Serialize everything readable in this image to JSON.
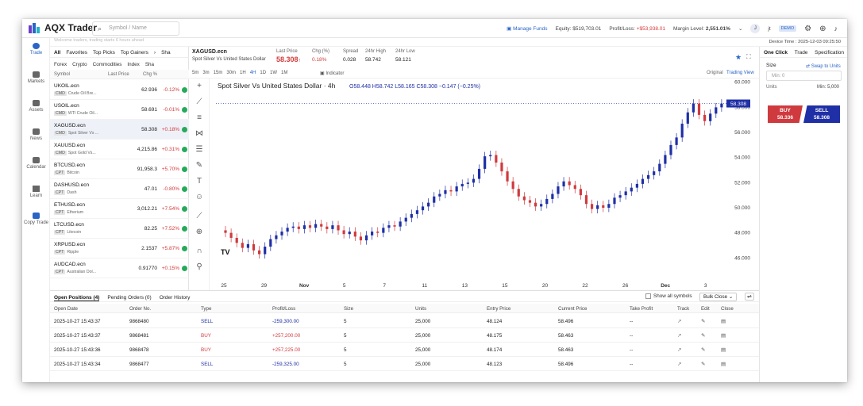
{
  "app": {
    "name": "AQX Trader"
  },
  "search": {
    "placeholder": "Symbol / Name"
  },
  "header": {
    "manage_funds": "Manage Funds",
    "equity_label": "Equity:",
    "equity": "$519,703.01",
    "pl_label": "Profit/Loss:",
    "pl": "+$53,938.01",
    "margin_label": "Margin Level:",
    "margin": "2,551.01%",
    "user_initial": "J",
    "user_name": "jt",
    "account_badge": "DEMO"
  },
  "subbar": {
    "text": "Welcome traders, trading starts 6 hours ahead"
  },
  "device_time": "Device Time : 2025-12-03 09:25:50",
  "nav": [
    {
      "label": "Trade",
      "icon": "trade-icon"
    },
    {
      "label": "Markets",
      "icon": "markets-icon"
    },
    {
      "label": "Assets",
      "icon": "assets-icon"
    },
    {
      "label": "News",
      "icon": "news-icon"
    },
    {
      "label": "Calendar",
      "icon": "calendar-icon"
    },
    {
      "label": "Learn",
      "icon": "learn-icon"
    },
    {
      "label": "Copy Trade",
      "icon": "copy-trade-icon"
    }
  ],
  "watchlist": {
    "tabs": [
      "All",
      "Favorites",
      "Top Picks",
      "Top Gainers",
      "Sha"
    ],
    "subtabs": [
      "Forex",
      "Crypto",
      "Commodities",
      "Index",
      "Sha"
    ],
    "headers": {
      "symbol": "Symbol",
      "last": "Last Price",
      "chg": "Chg %"
    },
    "rows": [
      {
        "symbol": "UKOIL.ecn",
        "tag": "CMD",
        "name": "Crude Oil Bre...",
        "price": "62.936",
        "chg": "-0.12%",
        "color": "#d23a3a"
      },
      {
        "symbol": "USOIL.ecn",
        "tag": "CMD",
        "name": "WTI Crude Oil...",
        "price": "58.691",
        "chg": "-0.01%",
        "color": "#d23a3a"
      },
      {
        "symbol": "XAGUSD.ecn",
        "tag": "CMD",
        "name": "Spot Silver Vs ...",
        "price": "58.308",
        "chg": "+0.18%",
        "color": "#d23a3a"
      },
      {
        "symbol": "XAUUSD.ecn",
        "tag": "CMD",
        "name": "Spot Gold Vs...",
        "price": "4,215.86",
        "chg": "+0.31%",
        "color": "#d23a3a"
      },
      {
        "symbol": "BTCUSD.ecn",
        "tag": "CPT",
        "name": "Bitcoin",
        "price": "91,958.3",
        "chg": "+5.70%",
        "color": "#d23a3a"
      },
      {
        "symbol": "DASHUSD.ecn",
        "tag": "CPT",
        "name": "Dash",
        "price": "47.01",
        "chg": "-0.80%",
        "color": "#d23a3a"
      },
      {
        "symbol": "ETHUSD.ecn",
        "tag": "CPT",
        "name": "Etherium",
        "price": "3,012.21",
        "chg": "+7.54%",
        "color": "#d23a3a"
      },
      {
        "symbol": "LTCUSD.ecn",
        "tag": "CPT",
        "name": "Litecoin",
        "price": "82.25",
        "chg": "+7.52%",
        "color": "#d23a3a"
      },
      {
        "symbol": "XRPUSD.ecn",
        "tag": "CPT",
        "name": "Ripple",
        "price": "2.1537",
        "chg": "+5.87%",
        "color": "#d23a3a"
      },
      {
        "symbol": "AUDCAD.ecn",
        "tag": "CPT",
        "name": "Australian Dol...",
        "price": "0.91770",
        "chg": "+0.15%",
        "color": "#d23a3a"
      }
    ]
  },
  "instrument": {
    "symbol": "XAGUSD.ecn",
    "name": "Spot Silver Vs United States Dollar",
    "last_label": "Last Price",
    "last": "58.308",
    "arrow": "↑",
    "chg_label": "Chg (%)",
    "chg": "0.18%",
    "spread_label": "Spread",
    "spread": "0.028",
    "high_label": "24hr High",
    "high": "58.742",
    "low_label": "24hr Low",
    "low": "58.121"
  },
  "timeframes": [
    "5m",
    "3m",
    "15m",
    "30m",
    "1H",
    "4H",
    "1D",
    "1W",
    "1M"
  ],
  "indicator_label": "Indicator",
  "view": {
    "original": "Original",
    "tv": "Trading View"
  },
  "chart_data": {
    "type": "candlestick",
    "title": "Spot Silver Vs United States Dollar · 4h",
    "ohlc_text": "O58.448 H58.742 L58.165 C58.308 −0.147 (−0.25%)",
    "ylim": [
      44.5,
      60.3
    ],
    "yticks": [
      "60.000",
      "58.000",
      "56.000",
      "54.000",
      "52.000",
      "50.000",
      "48.000",
      "46.000"
    ],
    "ytick_values": [
      60,
      58,
      56,
      54,
      52,
      50,
      48,
      46
    ],
    "xticks": [
      "25",
      "29",
      "Nov",
      "5",
      "7",
      "11",
      "13",
      "15",
      "20",
      "22",
      "26",
      "Dec",
      "3"
    ],
    "last_price_label": "58.308",
    "last_price": 58.308,
    "close": [
      48,
      47.6,
      47.2,
      46.8,
      47.1,
      46.6,
      46.3,
      46.9,
      47.5,
      47.8,
      48.1,
      48.4,
      48.5,
      48.3,
      48.6,
      48.4,
      48.7,
      48.5,
      48.3,
      48.6,
      48.2,
      47.9,
      48.1,
      47.7,
      47.4,
      47.8,
      48.1,
      48.0,
      48.4,
      48.6,
      48.5,
      48.9,
      49.2,
      49.5,
      49.8,
      50.1,
      50.4,
      50.9,
      51.1,
      51.4,
      51.3,
      51.7,
      51.9,
      52.0,
      52.3,
      53.1,
      54.1,
      54.2,
      53.6,
      52.9,
      52.1,
      51.5,
      50.9,
      50.6,
      50.4,
      50.1,
      50.3,
      50.7,
      51.1,
      51.7,
      52.1,
      51.8,
      51.5,
      51.0,
      50.3,
      49.9,
      50.2,
      50.0,
      50.3,
      50.8,
      51.0,
      51.3,
      51.6,
      51.9,
      52.3,
      52.6,
      52.9,
      53.5,
      54.2,
      55.0,
      55.6,
      56.7,
      57.6,
      58.3,
      57.4,
      56.9,
      57.5,
      58.0,
      58.3
    ]
  },
  "right_panel": {
    "tabs": [
      "One Click",
      "Trade",
      "Specification"
    ],
    "size_label": "Size",
    "swap": "Swap to Units",
    "size_value": "Min: 0",
    "units_label": "Units",
    "units_min": "Min: 5,000",
    "buy_label": "BUY",
    "buy_price": "58.336",
    "sell_label": "SELL",
    "sell_price": "58.308"
  },
  "positions": {
    "tabs": [
      "Open Positions (4)",
      "Pending Orders (0)",
      "Order History"
    ],
    "show_all": "Show all symbols",
    "bulk_close": "Bulk Close",
    "headers": [
      "Open Date",
      "Order No.",
      "Type",
      "Profit/Loss",
      "Size",
      "Units",
      "Entry Price",
      "Current Price",
      "Take Profit",
      "Track",
      "Edit",
      "Close"
    ],
    "rows": [
      {
        "date": "2025-10-27 15:43:37",
        "order": "9868480",
        "type": "SELL",
        "pl": "-259,300.00",
        "size": "5",
        "units": "25,000",
        "entry": "48.124",
        "current": "58.496",
        "tp": "--"
      },
      {
        "date": "2025-10-27 15:43:37",
        "order": "9868481",
        "type": "BUY",
        "pl": "+257,200.00",
        "size": "5",
        "units": "25,000",
        "entry": "48.175",
        "current": "58.463",
        "tp": "--"
      },
      {
        "date": "2025-10-27 15:43:36",
        "order": "9868478",
        "type": "BUY",
        "pl": "+257,225.00",
        "size": "5",
        "units": "25,000",
        "entry": "48.174",
        "current": "58.463",
        "tp": "--"
      },
      {
        "date": "2025-10-27 15:43:34",
        "order": "9868477",
        "type": "SELL",
        "pl": "-259,325.00",
        "size": "5",
        "units": "25,000",
        "entry": "48.123",
        "current": "58.496",
        "tp": "--"
      }
    ]
  },
  "colors": {
    "up": "#1f2fa6",
    "down": "#cf3a3f",
    "accent": "#2a64c6"
  }
}
